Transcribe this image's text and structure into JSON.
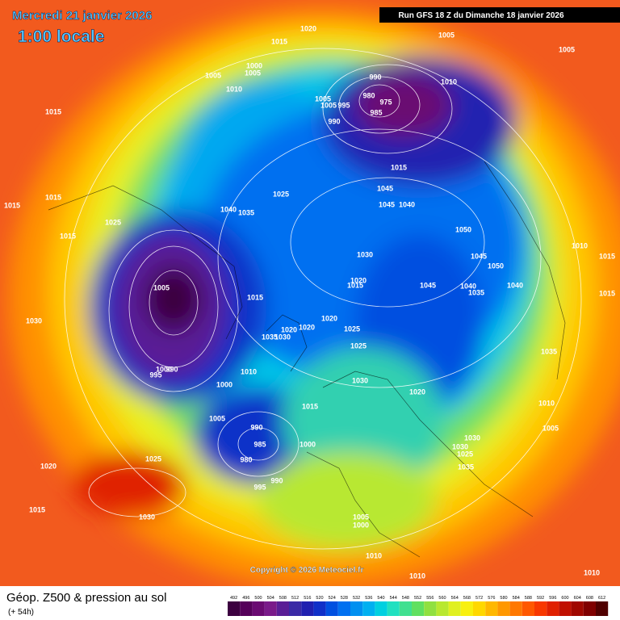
{
  "header": {
    "date": "Mercredi 21 janvier 2026",
    "time": "1:00 locale",
    "run": "Run GFS 18 Z du Dimanche 18 janvier 2026"
  },
  "pressure_labels": [
    "1020",
    "1015",
    "1005",
    "1005",
    "1000",
    "1005",
    "1005",
    "1010",
    "990",
    "980",
    "975",
    "1005",
    "1005",
    "995",
    "985",
    "990",
    "1010",
    "1015",
    "1015",
    "1025",
    "1045",
    "1040",
    "1035",
    "1045",
    "1040",
    "1015",
    "1015",
    "1025",
    "1015",
    "1050",
    "1030",
    "1045",
    "1050",
    "1020",
    "1015",
    "1045",
    "1040",
    "1035",
    "1040",
    "1005",
    "1015",
    "1015",
    "1020",
    "1025",
    "1020",
    "1020",
    "1035",
    "1030",
    "1030",
    "1025",
    "1035",
    "1000",
    "990",
    "995",
    "1010",
    "1030",
    "1000",
    "1020",
    "1010",
    "1015",
    "1005",
    "990",
    "1005",
    "985",
    "1000",
    "1030",
    "1030",
    "1025",
    "1035",
    "1020",
    "1025",
    "980",
    "990",
    "995",
    "1015",
    "1030",
    "1005",
    "1000",
    "1010",
    "1010",
    "1010",
    "1010",
    "1015"
  ],
  "copyright": "Copyright © 2026 Meteociel.fr",
  "footer": {
    "title": "Géop. Z500 & pression au sol",
    "lead": "(+ 54h)"
  },
  "color_scale": {
    "values": [
      492,
      496,
      500,
      504,
      508,
      512,
      516,
      520,
      524,
      528,
      532,
      536,
      540,
      544,
      548,
      552,
      556,
      560,
      564,
      568,
      572,
      576,
      580,
      584,
      588,
      592,
      596,
      600,
      604,
      608,
      612
    ],
    "colors": [
      "#3c0040",
      "#55005a",
      "#6a0a72",
      "#7a1a8a",
      "#5a1e96",
      "#3a2aa6",
      "#2020b0",
      "#1030c8",
      "#0050e0",
      "#0070f0",
      "#0090f0",
      "#00b0f0",
      "#00d0e0",
      "#20e0c0",
      "#40e090",
      "#60e060",
      "#90e040",
      "#b8e830",
      "#e0f020",
      "#f8f010",
      "#ffd800",
      "#ffb800",
      "#ff9800",
      "#ff7800",
      "#ff5800",
      "#f83800",
      "#e02000",
      "#c01000",
      "#a00800",
      "#800000",
      "#500000"
    ]
  }
}
